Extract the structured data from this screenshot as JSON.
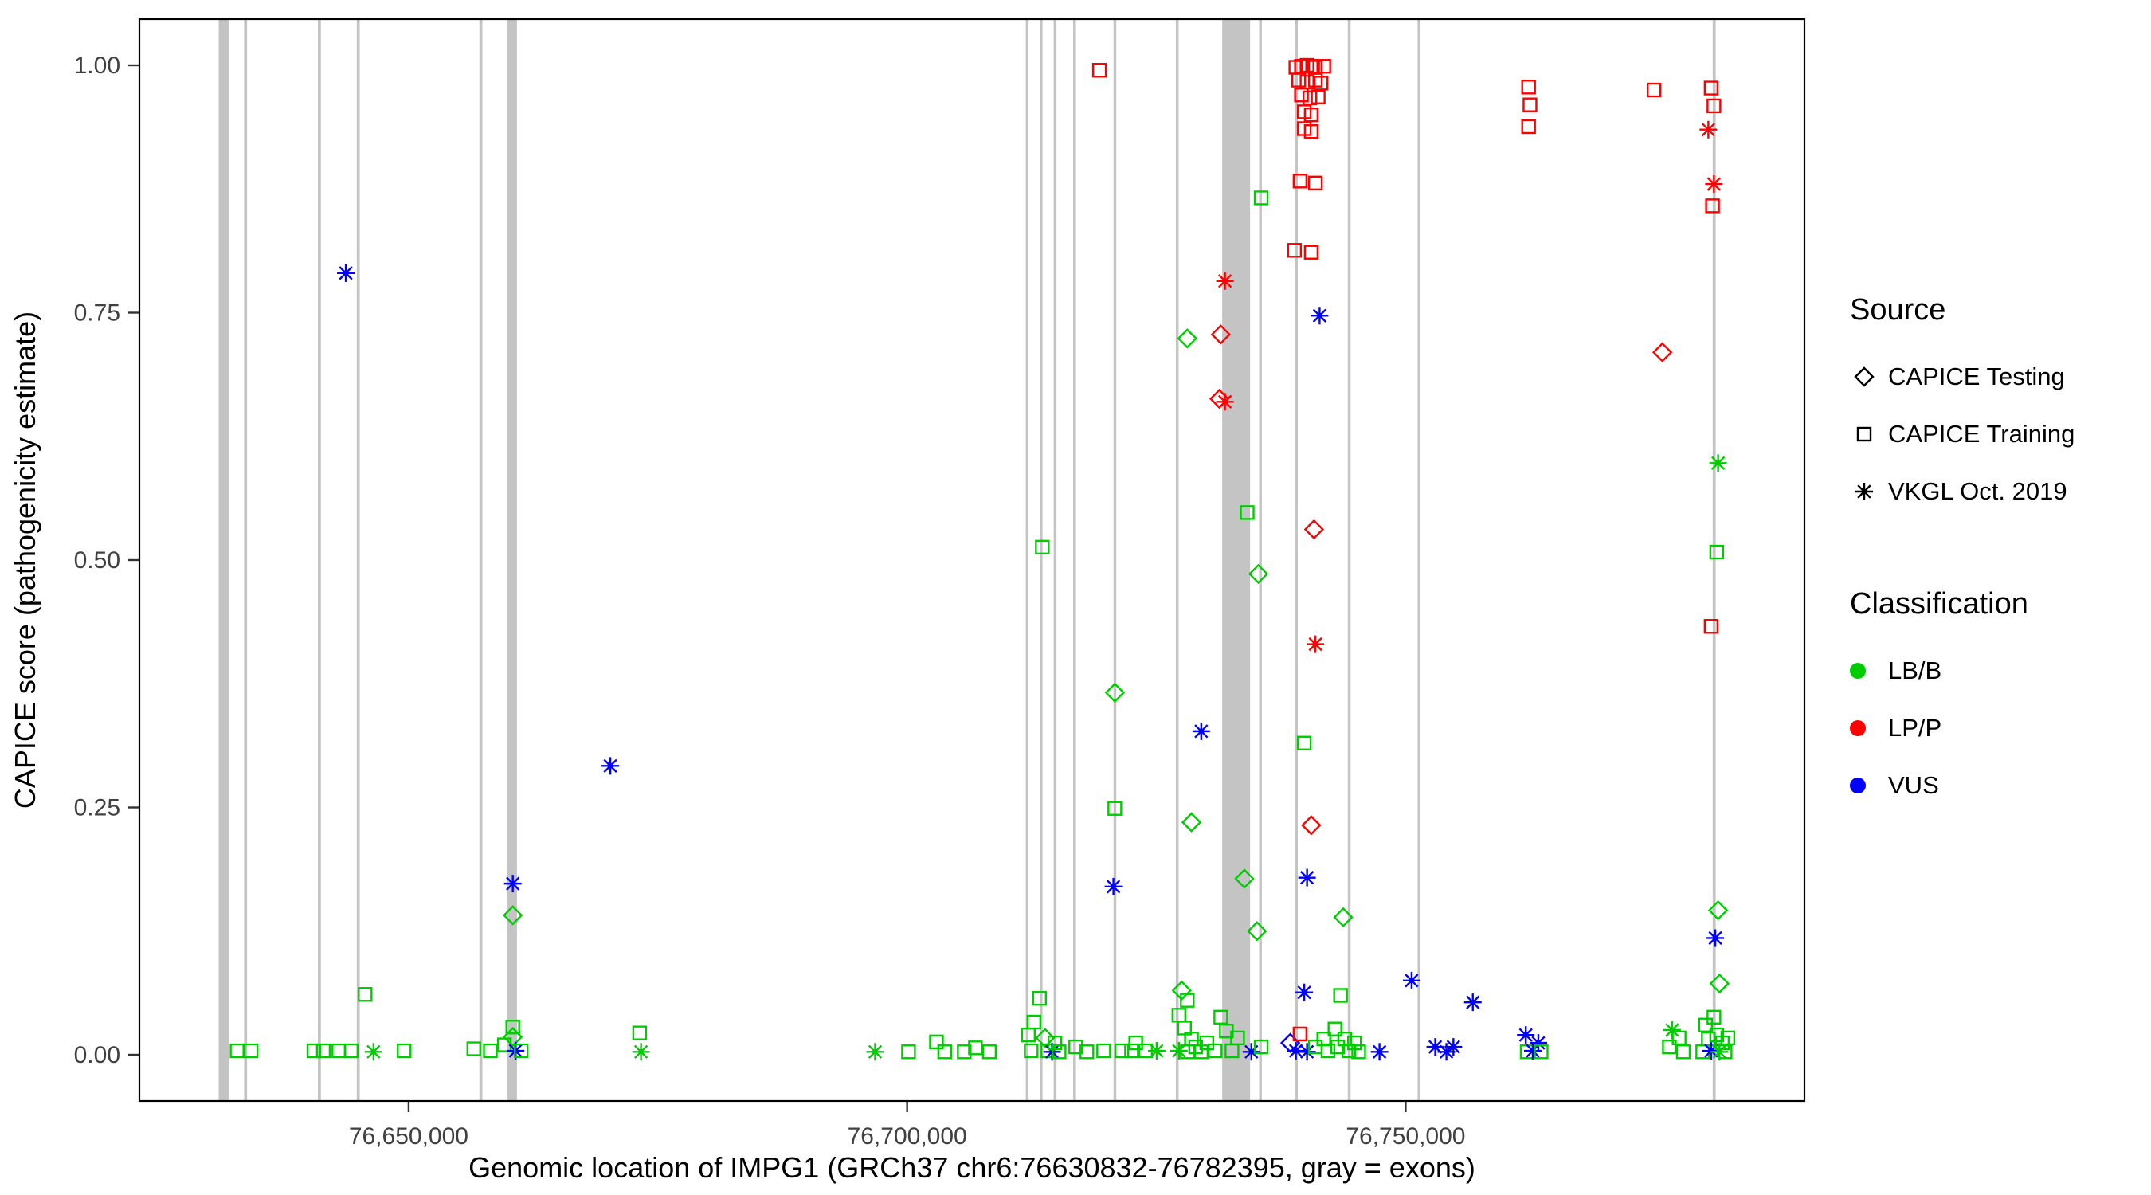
{
  "legend": {
    "source_title": "Source",
    "classification_title": "Classification"
  },
  "axes": {
    "x_title": "Genomic location of IMPG1 (GRCh37 chr6:76630832-76782395, gray = exons)",
    "y_title": "CAPICE score (pathogenicity estimate)",
    "x_ticks": [
      {
        "value": 76650000,
        "label": "76,650,000"
      },
      {
        "value": 76700000,
        "label": "76,700,000"
      },
      {
        "value": 76750000,
        "label": "76,750,000"
      }
    ],
    "y_ticks": [
      {
        "value": 0.0,
        "label": "0.00"
      },
      {
        "value": 0.25,
        "label": "0.25"
      },
      {
        "value": 0.5,
        "label": "0.50"
      },
      {
        "value": 0.75,
        "label": "0.75"
      },
      {
        "value": 1.0,
        "label": "1.00"
      }
    ]
  },
  "chart_data": {
    "type": "scatter",
    "title": "",
    "xlabel": "Genomic location of IMPG1 (GRCh37 chr6:76630832-76782395, gray = exons)",
    "ylabel": "CAPICE score (pathogenicity estimate)",
    "xlim": [
      76623000,
      76790000
    ],
    "ylim": [
      0,
      1
    ],
    "grid": false,
    "legend_position": "right",
    "exon_color": "#C4C4C4",
    "class_styles": {
      "LB": {
        "label": "LB/B",
        "color": "#00CD00"
      },
      "LP": {
        "label": "LP/P",
        "color": "#FF0000"
      },
      "VUS": {
        "label": "VUS",
        "color": "#0000FF"
      }
    },
    "source_styles": {
      "te": {
        "label": "CAPICE Testing",
        "shape": "diamond"
      },
      "tr": {
        "label": "CAPICE Training",
        "shape": "square"
      },
      "vk": {
        "label": "VKGL Oct. 2019",
        "shape": "asterisk"
      }
    },
    "exons": [
      [
        76630950,
        76631950
      ],
      [
        76633500,
        76633800
      ],
      [
        76640900,
        76641200
      ],
      [
        76644800,
        76645100
      ],
      [
        76657100,
        76657400
      ],
      [
        76659890,
        76660870
      ],
      [
        76711900,
        76712180
      ],
      [
        76713300,
        76713580
      ],
      [
        76714700,
        76714980
      ],
      [
        76716650,
        76716930
      ],
      [
        76720700,
        76720980
      ],
      [
        76726950,
        76727230
      ],
      [
        76731600,
        76734400
      ],
      [
        76735300,
        76735580
      ],
      [
        76738900,
        76739180
      ],
      [
        76744200,
        76744480
      ],
      [
        76751200,
        76751480
      ],
      [
        76780800,
        76781100
      ]
    ],
    "points": [
      [
        76632800,
        0.004,
        "tr",
        "LB"
      ],
      [
        76634200,
        0.004,
        "tr",
        "LB"
      ],
      [
        76640500,
        0.004,
        "tr",
        "LB"
      ],
      [
        76641450,
        0.004,
        "tr",
        "LB"
      ],
      [
        76643000,
        0.004,
        "tr",
        "LB"
      ],
      [
        76643700,
        0.79,
        "vk",
        "VUS"
      ],
      [
        76644240,
        0.004,
        "tr",
        "LB"
      ],
      [
        76645640,
        0.061,
        "tr",
        "LB"
      ],
      [
        76646480,
        0.003,
        "vk",
        "LB"
      ],
      [
        76649550,
        0.004,
        "tr",
        "LB"
      ],
      [
        76656540,
        0.006,
        "tr",
        "LB"
      ],
      [
        76658200,
        0.004,
        "tr",
        "LB"
      ],
      [
        76659600,
        0.01,
        "tr",
        "LB"
      ],
      [
        76660450,
        0.173,
        "vk",
        "VUS"
      ],
      [
        76660450,
        0.141,
        "te",
        "LB"
      ],
      [
        76660450,
        0.028,
        "tr",
        "LB"
      ],
      [
        76660450,
        0.018,
        "te",
        "LB"
      ],
      [
        76660730,
        0.004,
        "vk",
        "VUS"
      ],
      [
        76661290,
        0.004,
        "tr",
        "LB"
      ],
      [
        76670230,
        0.292,
        "vk",
        "VUS"
      ],
      [
        76673170,
        0.022,
        "tr",
        "LB"
      ],
      [
        76673310,
        0.003,
        "vk",
        "LB"
      ],
      [
        76696790,
        0.003,
        "vk",
        "LB"
      ],
      [
        76700140,
        0.003,
        "tr",
        "LB"
      ],
      [
        76702940,
        0.013,
        "tr",
        "LB"
      ],
      [
        76703770,
        0.003,
        "tr",
        "LB"
      ],
      [
        76705730,
        0.003,
        "tr",
        "LB"
      ],
      [
        76706850,
        0.007,
        "tr",
        "LB"
      ],
      [
        76708250,
        0.003,
        "tr",
        "LB"
      ],
      [
        76712160,
        0.02,
        "tr",
        "LB"
      ],
      [
        76712440,
        0.004,
        "tr",
        "LB"
      ],
      [
        76712720,
        0.033,
        "tr",
        "LB"
      ],
      [
        76713280,
        0.057,
        "tr",
        "LB"
      ],
      [
        76713560,
        0.513,
        "tr",
        "LB"
      ],
      [
        76713840,
        0.017,
        "te",
        "LB"
      ],
      [
        76714120,
        0.004,
        "tr",
        "LB"
      ],
      [
        76714540,
        0.003,
        "vk",
        "VUS"
      ],
      [
        76714820,
        0.012,
        "tr",
        "LB"
      ],
      [
        76715240,
        0.003,
        "tr",
        "LB"
      ],
      [
        76716910,
        0.008,
        "tr",
        "LB"
      ],
      [
        76718030,
        0.003,
        "tr",
        "LB"
      ],
      [
        76719290,
        0.995,
        "tr",
        "LP"
      ],
      [
        76719710,
        0.004,
        "tr",
        "LB"
      ],
      [
        76720690,
        0.17,
        "vk",
        "VUS"
      ],
      [
        76720830,
        0.366,
        "te",
        "LB"
      ],
      [
        76720830,
        0.249,
        "tr",
        "LB"
      ],
      [
        76721530,
        0.004,
        "tr",
        "LB"
      ],
      [
        76722510,
        0.004,
        "tr",
        "LB"
      ],
      [
        76722930,
        0.012,
        "tr",
        "LB"
      ],
      [
        76723910,
        0.004,
        "tr",
        "LB"
      ],
      [
        76725030,
        0.004,
        "vk",
        "LB"
      ],
      [
        76727260,
        0.04,
        "tr",
        "LB"
      ],
      [
        76727260,
        0.004,
        "vk",
        "LB"
      ],
      [
        76727540,
        0.065,
        "te",
        "LB"
      ],
      [
        76727820,
        0.027,
        "tr",
        "LB"
      ],
      [
        76728100,
        0.724,
        "te",
        "LB"
      ],
      [
        76728100,
        0.055,
        "tr",
        "LB"
      ],
      [
        76728100,
        0.003,
        "tr",
        "LB"
      ],
      [
        76728520,
        0.235,
        "te",
        "LB"
      ],
      [
        76728520,
        0.016,
        "tr",
        "LB"
      ],
      [
        76728940,
        0.008,
        "tr",
        "LB"
      ],
      [
        76729500,
        0.327,
        "vk",
        "VUS"
      ],
      [
        76729500,
        0.003,
        "tr",
        "LB"
      ],
      [
        76730060,
        0.012,
        "tr",
        "LB"
      ],
      [
        76730900,
        0.004,
        "tr",
        "LB"
      ],
      [
        76731320,
        0.663,
        "te",
        "LP"
      ],
      [
        76731460,
        0.728,
        "te",
        "LP"
      ],
      [
        76731460,
        0.038,
        "tr",
        "LB"
      ],
      [
        76731880,
        0.782,
        "vk",
        "LP"
      ],
      [
        76731880,
        0.66,
        "vk",
        "LP"
      ],
      [
        76732020,
        0.024,
        "tr",
        "LB"
      ],
      [
        76732580,
        0.004,
        "tr",
        "LB"
      ],
      [
        76733140,
        0.017,
        "tr",
        "LB"
      ],
      [
        76733830,
        0.178,
        "te",
        "LB"
      ],
      [
        76734110,
        0.548,
        "tr",
        "LB"
      ],
      [
        76734530,
        0.003,
        "vk",
        "VUS"
      ],
      [
        76735090,
        0.125,
        "te",
        "LB"
      ],
      [
        76735230,
        0.486,
        "te",
        "LB"
      ],
      [
        76735510,
        0.866,
        "tr",
        "LB"
      ],
      [
        76735510,
        0.008,
        "tr",
        "LB"
      ],
      [
        76738430,
        0.012,
        "te",
        "VUS"
      ],
      [
        76738850,
        0.813,
        "tr",
        "LP"
      ],
      [
        76738990,
        0.998,
        "tr",
        "LP"
      ],
      [
        76738990,
        0.004,
        "vk",
        "VUS"
      ],
      [
        76739270,
        0.985,
        "tr",
        "LP"
      ],
      [
        76739410,
        0.883,
        "tr",
        "LP"
      ],
      [
        76739410,
        0.021,
        "tr",
        "LP"
      ],
      [
        76739550,
        0.999,
        "tr",
        "LP"
      ],
      [
        76739550,
        0.97,
        "tr",
        "LP"
      ],
      [
        76739830,
        0.953,
        "tr",
        "LP"
      ],
      [
        76739830,
        0.936,
        "tr",
        "LP"
      ],
      [
        76739830,
        0.315,
        "tr",
        "LB"
      ],
      [
        76739830,
        0.063,
        "vk",
        "VUS"
      ],
      [
        76740110,
        1.0,
        "tr",
        "LP"
      ],
      [
        76740110,
        0.983,
        "tr",
        "LP"
      ],
      [
        76740110,
        0.179,
        "vk",
        "VUS"
      ],
      [
        76740110,
        0.003,
        "vk",
        "VUS"
      ],
      [
        76740390,
        0.967,
        "tr",
        "LP"
      ],
      [
        76740530,
        0.95,
        "tr",
        "LP"
      ],
      [
        76740530,
        0.933,
        "tr",
        "LP"
      ],
      [
        76740530,
        0.811,
        "tr",
        "LP"
      ],
      [
        76740530,
        0.232,
        "te",
        "LP"
      ],
      [
        76740670,
        0.999,
        "tr",
        "LP"
      ],
      [
        76740810,
        0.531,
        "te",
        "LP"
      ],
      [
        76740950,
        0.998,
        "tr",
        "LP"
      ],
      [
        76740950,
        0.985,
        "tr",
        "LP"
      ],
      [
        76740950,
        0.881,
        "tr",
        "LP"
      ],
      [
        76740950,
        0.415,
        "vk",
        "LP"
      ],
      [
        76740950,
        0.008,
        "tr",
        "LB"
      ],
      [
        76741230,
        0.968,
        "tr",
        "LP"
      ],
      [
        76741370,
        0.747,
        "vk",
        "VUS"
      ],
      [
        76741510,
        0.982,
        "tr",
        "LP"
      ],
      [
        76741790,
        0.999,
        "tr",
        "LP"
      ],
      [
        76741790,
        0.016,
        "tr",
        "LB"
      ],
      [
        76742210,
        0.004,
        "tr",
        "LB"
      ],
      [
        76742910,
        0.026,
        "tr",
        "LB"
      ],
      [
        76743190,
        0.008,
        "tr",
        "LB"
      ],
      [
        76743470,
        0.06,
        "tr",
        "LB"
      ],
      [
        76743740,
        0.139,
        "te",
        "LB"
      ],
      [
        76743890,
        0.016,
        "tr",
        "LB"
      ],
      [
        76744310,
        0.004,
        "tr",
        "LB"
      ],
      [
        76744870,
        0.012,
        "tr",
        "LB"
      ],
      [
        76745290,
        0.003,
        "tr",
        "LB"
      ],
      [
        76747380,
        0.003,
        "vk",
        "VUS"
      ],
      [
        76750600,
        0.075,
        "vk",
        "VUS"
      ],
      [
        76752970,
        0.008,
        "vk",
        "VUS"
      ],
      [
        76754090,
        0.003,
        "vk",
        "VUS"
      ],
      [
        76754790,
        0.008,
        "vk",
        "VUS"
      ],
      [
        76756740,
        0.053,
        "vk",
        "VUS"
      ],
      [
        76762330,
        0.978,
        "tr",
        "LP"
      ],
      [
        76762330,
        0.938,
        "tr",
        "LP"
      ],
      [
        76762470,
        0.96,
        "tr",
        "LP"
      ],
      [
        76762050,
        0.02,
        "vk",
        "VUS"
      ],
      [
        76762190,
        0.003,
        "tr",
        "LB"
      ],
      [
        76762750,
        0.004,
        "vk",
        "VUS"
      ],
      [
        76763310,
        0.012,
        "vk",
        "VUS"
      ],
      [
        76763590,
        0.003,
        "tr",
        "LB"
      ],
      [
        76774910,
        0.975,
        "tr",
        "LP"
      ],
      [
        76775750,
        0.71,
        "te",
        "LP"
      ],
      [
        76776450,
        0.008,
        "tr",
        "LB"
      ],
      [
        76776730,
        0.025,
        "vk",
        "LB"
      ],
      [
        76777430,
        0.017,
        "tr",
        "LB"
      ],
      [
        76777850,
        0.003,
        "tr",
        "LB"
      ],
      [
        76779800,
        0.003,
        "tr",
        "LB"
      ],
      [
        76780080,
        0.03,
        "tr",
        "LB"
      ],
      [
        76780360,
        0.935,
        "vk",
        "LP"
      ],
      [
        76780360,
        0.016,
        "tr",
        "LB"
      ],
      [
        76780640,
        0.977,
        "tr",
        "LP"
      ],
      [
        76780640,
        0.433,
        "tr",
        "LP"
      ],
      [
        76780640,
        0.004,
        "vk",
        "VUS"
      ],
      [
        76780780,
        0.858,
        "tr",
        "LP"
      ],
      [
        76780920,
        0.959,
        "tr",
        "LP"
      ],
      [
        76780920,
        0.88,
        "vk",
        "LP"
      ],
      [
        76780920,
        0.038,
        "tr",
        "LB"
      ],
      [
        76781060,
        0.118,
        "vk",
        "VUS"
      ],
      [
        76781200,
        0.508,
        "tr",
        "LB"
      ],
      [
        76781200,
        0.02,
        "tr",
        "LB"
      ],
      [
        76781340,
        0.598,
        "vk",
        "LB"
      ],
      [
        76781340,
        0.146,
        "te",
        "LB"
      ],
      [
        76781480,
        0.072,
        "te",
        "LB"
      ],
      [
        76781480,
        0.003,
        "vk",
        "LB"
      ],
      [
        76781760,
        0.012,
        "tr",
        "LB"
      ],
      [
        76782040,
        0.003,
        "tr",
        "LB"
      ],
      [
        76782320,
        0.017,
        "tr",
        "LB"
      ]
    ]
  }
}
